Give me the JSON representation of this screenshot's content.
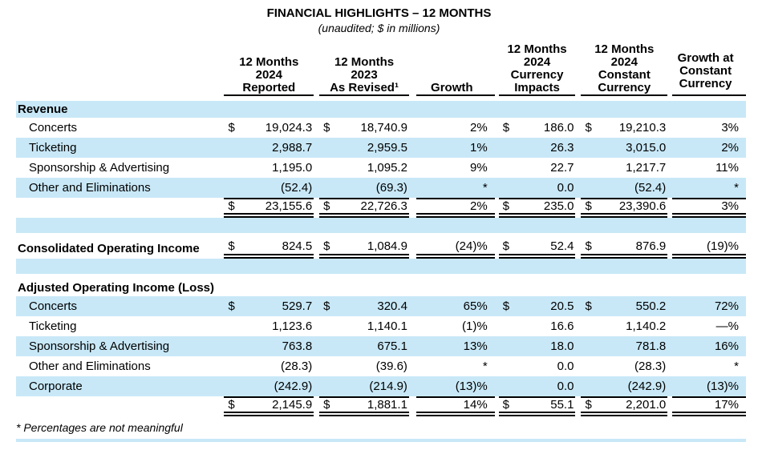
{
  "title": "FINANCIAL HIGHLIGHTS – 12 MONTHS",
  "subtitle": "(unaudited; $ in millions)",
  "headers": {
    "c1": "12 Months\n2024\nReported",
    "c2": "12 Months\n2023\nAs Revised¹",
    "c3": "Growth",
    "c4": "12 Months\n2024\nCurrency\nImpacts",
    "c5": "12 Months\n2024\nConstant\nCurrency",
    "c6": "Growth at\nConstant\nCurrency"
  },
  "table": {
    "rows": [
      {
        "label": "Revenue"
      },
      {
        "label": "Concerts",
        "d1": "$",
        "v1": "19,024.3",
        "d2": "$",
        "v2": "18,740.9",
        "g1": "2%",
        "d4": "$",
        "v4": "186.0",
        "d5": "$",
        "v5": "19,210.3",
        "g2": "3%"
      },
      {
        "label": "Ticketing",
        "v1": "2,988.7",
        "v2": "2,959.5",
        "g1": "1%",
        "v4": "26.3",
        "v5": "3,015.0",
        "g2": "2%"
      },
      {
        "label": "Sponsorship & Advertising",
        "v1": "1,195.0",
        "v2": "1,095.2",
        "g1": "9%",
        "v4": "22.7",
        "v5": "1,217.7",
        "g2": "11%"
      },
      {
        "label": "Other and Eliminations",
        "v1": "(52.4)",
        "v2": "(69.3)",
        "g1": "*",
        "v4": "0.0",
        "v5": "(52.4)",
        "g2": "*"
      },
      {
        "d1": "$",
        "v1": "23,155.6",
        "d2": "$",
        "v2": "22,726.3",
        "g1": "2%",
        "d4": "$",
        "v4": "235.0",
        "d5": "$",
        "v5": "23,390.6",
        "g2": "3%"
      },
      {
        "label": "Consolidated Operating Income",
        "d1": "$",
        "v1": "824.5",
        "d2": "$",
        "v2": "1,084.9",
        "g1": "(24)%",
        "d4": "$",
        "v4": "52.4",
        "d5": "$",
        "v5": "876.9",
        "g2": "(19)%"
      },
      {
        "label": "Adjusted Operating Income (Loss)"
      },
      {
        "label": "Concerts",
        "d1": "$",
        "v1": "529.7",
        "d2": "$",
        "v2": "320.4",
        "g1": "65%",
        "d4": "$",
        "v4": "20.5",
        "d5": "$",
        "v5": "550.2",
        "g2": "72%"
      },
      {
        "label": "Ticketing",
        "v1": "1,123.6",
        "v2": "1,140.1",
        "g1": "(1)%",
        "v4": "16.6",
        "v5": "1,140.2",
        "g2": "—%"
      },
      {
        "label": "Sponsorship & Advertising",
        "v1": "763.8",
        "v2": "675.1",
        "g1": "13%",
        "v4": "18.0",
        "v5": "781.8",
        "g2": "16%"
      },
      {
        "label": "Other and Eliminations",
        "v1": "(28.3)",
        "v2": "(39.6)",
        "g1": "*",
        "v4": "0.0",
        "v5": "(28.3)",
        "g2": "*"
      },
      {
        "label": "Corporate",
        "v1": "(242.9)",
        "v2": "(214.9)",
        "g1": "(13)%",
        "v4": "0.0",
        "v5": "(242.9)",
        "g2": "(13)%"
      },
      {
        "d1": "$",
        "v1": "2,145.9",
        "d2": "$",
        "v2": "1,881.1",
        "g1": "14%",
        "d4": "$",
        "v4": "55.1",
        "d5": "$",
        "v5": "2,201.0",
        "g2": "17%"
      }
    ]
  },
  "footnote": "* Percentages are not meaningful",
  "colors": {
    "row_highlight": "#C8E8F7"
  }
}
